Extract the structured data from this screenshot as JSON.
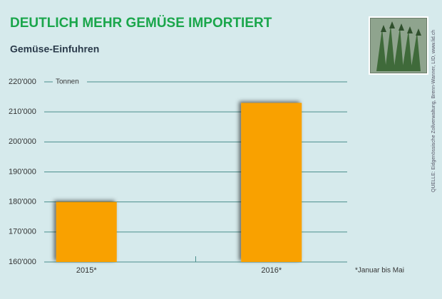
{
  "chart_data": {
    "type": "bar",
    "title": "DEUTLICH MEHR GEMÜSE IMPORTIERT",
    "subtitle": "Gemüse-Einfuhren",
    "y_label": "Tonnen",
    "note": "*Januar bis Mai",
    "source": "QUELLE: Eidgenössische Zollverwaltung, Brenn-Wanner, LID, www.lid.ch",
    "categories": [
      "2015*",
      "2016*"
    ],
    "values": [
      180000,
      213000
    ],
    "color": "#f9a100",
    "ylim": [
      160000,
      220000
    ],
    "yticks": [
      {
        "value": 160000,
        "label": "160'000"
      },
      {
        "value": 170000,
        "label": "170'000"
      },
      {
        "value": 180000,
        "label": "180'000"
      },
      {
        "value": 190000,
        "label": "190'000"
      },
      {
        "value": 200000,
        "label": "200'000"
      },
      {
        "value": 210000,
        "label": "210'000"
      },
      {
        "value": 220000,
        "label": "220'000"
      }
    ],
    "grid": true
  }
}
